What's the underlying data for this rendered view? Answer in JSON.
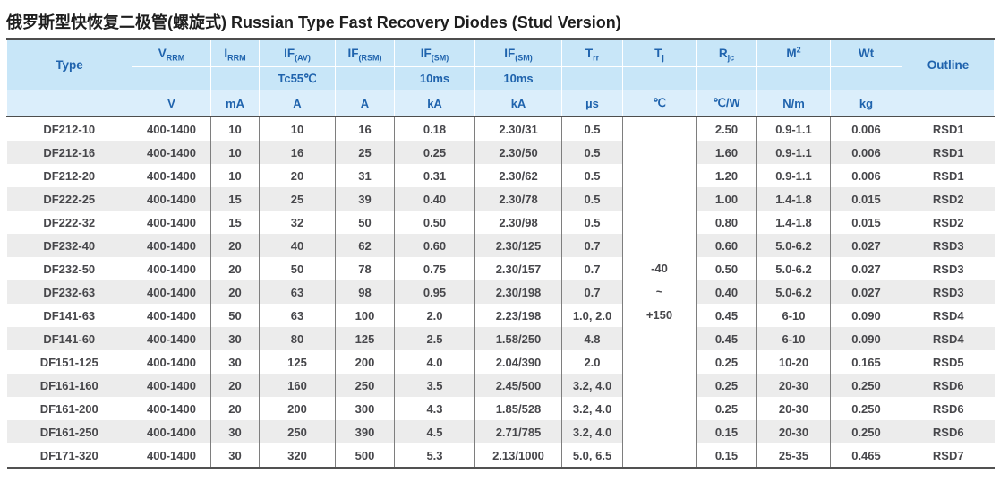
{
  "title": "俄罗斯型快恢复二极管(螺旋式) Russian Type Fast Recovery Diodes (Stud Version)",
  "table": {
    "columns": [
      {
        "key": "type",
        "label": {
          "main": "Type"
        },
        "condition": "",
        "unit": "",
        "span_head": true
      },
      {
        "key": "vrrm",
        "label": {
          "main": "V",
          "sub": "RRM"
        },
        "condition": "",
        "unit": "V"
      },
      {
        "key": "irrm",
        "label": {
          "main": "I",
          "sub": "RRM"
        },
        "condition": "",
        "unit": "mA"
      },
      {
        "key": "if_av",
        "label": {
          "main": "IF",
          "sub": "(AV)"
        },
        "condition": "Tc55℃",
        "unit": "A"
      },
      {
        "key": "if_rsm",
        "label": {
          "main": "IF",
          "sub": "(RSM)"
        },
        "condition": "",
        "unit": "A"
      },
      {
        "key": "if_sm_1",
        "label": {
          "main": "IF",
          "sub": "(SM)"
        },
        "condition": "10ms",
        "unit": "kA"
      },
      {
        "key": "if_sm_2",
        "label": {
          "main": "IF",
          "sub": "(SM)"
        },
        "condition": "10ms",
        "unit": "kA"
      },
      {
        "key": "trr",
        "label": {
          "main": "T",
          "sub": "rr"
        },
        "condition": "",
        "unit": "µs"
      },
      {
        "key": "tj",
        "label": {
          "main": "T",
          "sub": "j"
        },
        "condition": "",
        "unit": "℃"
      },
      {
        "key": "rjc",
        "label": {
          "main": "R",
          "sub": "jc"
        },
        "condition": "",
        "unit": "℃/W"
      },
      {
        "key": "m2",
        "label": {
          "main": "M",
          "sup": "2"
        },
        "condition": "",
        "unit": "N/m"
      },
      {
        "key": "wt",
        "label": {
          "main": "Wt"
        },
        "condition": "",
        "unit": "kg"
      },
      {
        "key": "outline",
        "label": {
          "main": "Outline"
        },
        "condition": "",
        "unit": "",
        "span_head": true
      }
    ],
    "tj_cell": {
      "lines": [
        "-40",
        "~",
        "+150"
      ]
    },
    "rows": [
      [
        "DF212-10",
        "400-1400",
        "10",
        "10",
        "16",
        "0.18",
        "2.30/31",
        "0.5",
        "2.50",
        "0.9-1.1",
        "0.006",
        "RSD1"
      ],
      [
        "DF212-16",
        "400-1400",
        "10",
        "16",
        "25",
        "0.25",
        "2.30/50",
        "0.5",
        "1.60",
        "0.9-1.1",
        "0.006",
        "RSD1"
      ],
      [
        "DF212-20",
        "400-1400",
        "10",
        "20",
        "31",
        "0.31",
        "2.30/62",
        "0.5",
        "1.20",
        "0.9-1.1",
        "0.006",
        "RSD1"
      ],
      [
        "DF222-25",
        "400-1400",
        "15",
        "25",
        "39",
        "0.40",
        "2.30/78",
        "0.5",
        "1.00",
        "1.4-1.8",
        "0.015",
        "RSD2"
      ],
      [
        "DF222-32",
        "400-1400",
        "15",
        "32",
        "50",
        "0.50",
        "2.30/98",
        "0.5",
        "0.80",
        "1.4-1.8",
        "0.015",
        "RSD2"
      ],
      [
        "DF232-40",
        "400-1400",
        "20",
        "40",
        "62",
        "0.60",
        "2.30/125",
        "0.7",
        "0.60",
        "5.0-6.2",
        "0.027",
        "RSD3"
      ],
      [
        "DF232-50",
        "400-1400",
        "20",
        "50",
        "78",
        "0.75",
        "2.30/157",
        "0.7",
        "0.50",
        "5.0-6.2",
        "0.027",
        "RSD3"
      ],
      [
        "DF232-63",
        "400-1400",
        "20",
        "63",
        "98",
        "0.95",
        "2.30/198",
        "0.7",
        "0.40",
        "5.0-6.2",
        "0.027",
        "RSD3"
      ],
      [
        "DF141-63",
        "400-1400",
        "50",
        "63",
        "100",
        "2.0",
        "2.23/198",
        "1.0, 2.0",
        "0.45",
        "6-10",
        "0.090",
        "RSD4"
      ],
      [
        "DF141-60",
        "400-1400",
        "30",
        "80",
        "125",
        "2.5",
        "1.58/250",
        "4.8",
        "0.45",
        "6-10",
        "0.090",
        "RSD4"
      ],
      [
        "DF151-125",
        "400-1400",
        "30",
        "125",
        "200",
        "4.0",
        "2.04/390",
        "2.0",
        "0.25",
        "10-20",
        "0.165",
        "RSD5"
      ],
      [
        "DF161-160",
        "400-1400",
        "20",
        "160",
        "250",
        "3.5",
        "2.45/500",
        "3.2, 4.0",
        "0.25",
        "20-30",
        "0.250",
        "RSD6"
      ],
      [
        "DF161-200",
        "400-1400",
        "20",
        "200",
        "300",
        "4.3",
        "1.85/528",
        "3.2, 4.0",
        "0.25",
        "20-30",
        "0.250",
        "RSD6"
      ],
      [
        "DF161-250",
        "400-1400",
        "30",
        "250",
        "390",
        "4.5",
        "2.71/785",
        "3.2, 4.0",
        "0.15",
        "20-30",
        "0.250",
        "RSD6"
      ],
      [
        "DF171-320",
        "400-1400",
        "30",
        "320",
        "500",
        "5.3",
        "2.13/1000",
        "5.0, 6.5",
        "0.15",
        "25-35",
        "0.465",
        "RSD7"
      ]
    ]
  }
}
